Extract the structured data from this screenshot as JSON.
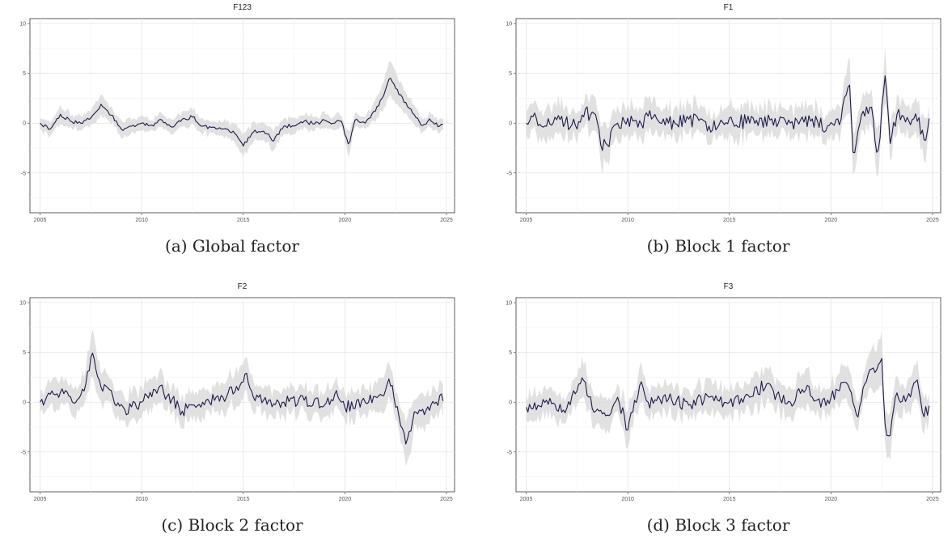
{
  "chart_data": [
    {
      "type": "line",
      "title": "F123",
      "caption": "(a) Global factor",
      "xlabel": "",
      "ylabel": "",
      "xlim": [
        2004.5,
        2025.4
      ],
      "ylim": [
        -9,
        10.5
      ],
      "xticks": [
        2005,
        2010,
        2015,
        2020,
        2025
      ],
      "yticks": [
        -5,
        0,
        5,
        10
      ],
      "grid": true,
      "band": "confidence band (grey)",
      "keypoints": [
        [
          2005.0,
          0.0
        ],
        [
          2005.5,
          -0.6
        ],
        [
          2006.0,
          0.9
        ],
        [
          2006.5,
          0.2
        ],
        [
          2007.0,
          0.0
        ],
        [
          2007.6,
          0.8
        ],
        [
          2008.0,
          1.9
        ],
        [
          2008.5,
          0.8
        ],
        [
          2009.0,
          -0.6
        ],
        [
          2009.5,
          -0.3
        ],
        [
          2010.0,
          0.0
        ],
        [
          2010.5,
          -0.2
        ],
        [
          2011.0,
          0.3
        ],
        [
          2011.5,
          -0.4
        ],
        [
          2012.0,
          0.4
        ],
        [
          2012.5,
          0.6
        ],
        [
          2013.0,
          -0.3
        ],
        [
          2013.5,
          -0.4
        ],
        [
          2014.0,
          -0.6
        ],
        [
          2014.5,
          -0.8
        ],
        [
          2015.0,
          -2.3
        ],
        [
          2015.5,
          -0.9
        ],
        [
          2016.0,
          -0.8
        ],
        [
          2016.5,
          -1.8
        ],
        [
          2017.0,
          -0.3
        ],
        [
          2017.5,
          -0.3
        ],
        [
          2018.0,
          0.2
        ],
        [
          2018.5,
          -0.1
        ],
        [
          2019.0,
          0.3
        ],
        [
          2019.5,
          0.0
        ],
        [
          2019.8,
          0.4
        ],
        [
          2020.2,
          -2.3
        ],
        [
          2020.5,
          0.3
        ],
        [
          2021.0,
          0.0
        ],
        [
          2021.5,
          1.2
        ],
        [
          2021.9,
          2.7
        ],
        [
          2022.2,
          4.6
        ],
        [
          2022.5,
          3.5
        ],
        [
          2022.8,
          2.7
        ],
        [
          2023.1,
          1.6
        ],
        [
          2023.4,
          0.9
        ],
        [
          2023.8,
          -0.3
        ],
        [
          2024.2,
          0.5
        ],
        [
          2024.6,
          -0.4
        ],
        [
          2024.9,
          0.2
        ]
      ],
      "band_width": 0.7,
      "noise": 0.2,
      "seed": 11
    },
    {
      "type": "line",
      "title": "F1",
      "caption": "(b) Block 1 factor",
      "xlabel": "",
      "ylabel": "",
      "xlim": [
        2004.5,
        2025.4
      ],
      "ylim": [
        -9,
        10.5
      ],
      "xticks": [
        2005,
        2010,
        2015,
        2020,
        2025
      ],
      "yticks": [
        -5,
        0,
        5,
        10
      ],
      "grid": true,
      "band": "confidence band (grey)",
      "keypoints": [
        [
          2005.0,
          0.0
        ],
        [
          2005.5,
          0.5
        ],
        [
          2006.0,
          -0.3
        ],
        [
          2006.6,
          0.8
        ],
        [
          2007.2,
          -0.5
        ],
        [
          2007.8,
          0.6
        ],
        [
          2008.3,
          1.3
        ],
        [
          2008.7,
          -2.5
        ],
        [
          2009.0,
          -2.2
        ],
        [
          2009.5,
          0.0
        ],
        [
          2010.0,
          0.5
        ],
        [
          2010.5,
          -0.4
        ],
        [
          2011.0,
          0.7
        ],
        [
          2012.0,
          0.0
        ],
        [
          2013.0,
          0.4
        ],
        [
          2014.0,
          -0.3
        ],
        [
          2015.0,
          0.5
        ],
        [
          2016.0,
          0.0
        ],
        [
          2017.0,
          0.3
        ],
        [
          2018.0,
          0.0
        ],
        [
          2019.0,
          0.2
        ],
        [
          2019.8,
          -0.3
        ],
        [
          2020.5,
          0.4
        ],
        [
          2020.9,
          4.5
        ],
        [
          2021.1,
          -3.6
        ],
        [
          2021.5,
          0.8
        ],
        [
          2022.0,
          1.6
        ],
        [
          2022.3,
          -3.4
        ],
        [
          2022.7,
          5.5
        ],
        [
          2022.9,
          -2.2
        ],
        [
          2023.3,
          1.5
        ],
        [
          2023.7,
          0.0
        ],
        [
          2024.2,
          1.0
        ],
        [
          2024.6,
          -1.8
        ],
        [
          2024.9,
          1.2
        ]
      ],
      "band_width": 1.6,
      "noise": 0.75,
      "seed": 23
    },
    {
      "type": "line",
      "title": "F2",
      "caption": "(c) Block 2 factor",
      "xlabel": "",
      "ylabel": "",
      "xlim": [
        2004.5,
        2025.4
      ],
      "ylim": [
        -9,
        10.5
      ],
      "xticks": [
        2005,
        2010,
        2015,
        2020,
        2025
      ],
      "yticks": [
        -5,
        0,
        5,
        10
      ],
      "grid": true,
      "band": "confidence band (grey)",
      "keypoints": [
        [
          2005.0,
          0.0
        ],
        [
          2005.5,
          0.8
        ],
        [
          2006.0,
          1.0
        ],
        [
          2006.6,
          0.0
        ],
        [
          2007.2,
          1.2
        ],
        [
          2007.6,
          5.1
        ],
        [
          2008.0,
          1.5
        ],
        [
          2008.6,
          0.5
        ],
        [
          2009.2,
          -0.8
        ],
        [
          2010.0,
          0.0
        ],
        [
          2010.8,
          1.5
        ],
        [
          2011.5,
          0.3
        ],
        [
          2012.0,
          -0.9
        ],
        [
          2013.0,
          0.0
        ],
        [
          2014.0,
          0.5
        ],
        [
          2014.8,
          1.5
        ],
        [
          2015.1,
          2.9
        ],
        [
          2015.5,
          0.5
        ],
        [
          2016.0,
          0.2
        ],
        [
          2017.0,
          0.0
        ],
        [
          2018.0,
          0.2
        ],
        [
          2019.0,
          -0.3
        ],
        [
          2019.5,
          0.8
        ],
        [
          2020.0,
          -0.5
        ],
        [
          2021.0,
          0.0
        ],
        [
          2021.8,
          0.5
        ],
        [
          2022.2,
          2.5
        ],
        [
          2022.5,
          -0.5
        ],
        [
          2022.8,
          -2.3
        ],
        [
          2023.0,
          -4.2
        ],
        [
          2023.5,
          -1.0
        ],
        [
          2024.0,
          -0.8
        ],
        [
          2024.5,
          0.0
        ],
        [
          2024.9,
          0.5
        ]
      ],
      "band_width": 1.4,
      "noise": 0.6,
      "seed": 37
    },
    {
      "type": "line",
      "title": "F3",
      "caption": "(d) Block 3 factor",
      "xlabel": "",
      "ylabel": "",
      "xlim": [
        2004.5,
        2025.4
      ],
      "ylim": [
        -9,
        10.5
      ],
      "xticks": [
        2005,
        2010,
        2015,
        2020,
        2025
      ],
      "yticks": [
        -5,
        0,
        5,
        10
      ],
      "grid": true,
      "band": "confidence band (grey)",
      "keypoints": [
        [
          2005.0,
          -0.5
        ],
        [
          2006.0,
          0.2
        ],
        [
          2007.0,
          -0.6
        ],
        [
          2007.8,
          2.4
        ],
        [
          2008.3,
          -1.0
        ],
        [
          2009.0,
          -1.3
        ],
        [
          2009.5,
          0.5
        ],
        [
          2010.0,
          -2.8
        ],
        [
          2010.6,
          1.8
        ],
        [
          2011.0,
          0.0
        ],
        [
          2012.0,
          0.3
        ],
        [
          2013.0,
          -0.3
        ],
        [
          2014.0,
          0.5
        ],
        [
          2015.0,
          0.0
        ],
        [
          2016.0,
          0.5
        ],
        [
          2016.8,
          1.9
        ],
        [
          2017.5,
          0.3
        ],
        [
          2018.0,
          0.0
        ],
        [
          2018.8,
          1.8
        ],
        [
          2019.5,
          -0.5
        ],
        [
          2020.0,
          0.5
        ],
        [
          2020.8,
          2.0
        ],
        [
          2021.3,
          -1.8
        ],
        [
          2021.8,
          2.8
        ],
        [
          2022.2,
          3.0
        ],
        [
          2022.5,
          4.4
        ],
        [
          2022.7,
          -3.6
        ],
        [
          2022.9,
          -3.6
        ],
        [
          2023.2,
          1.0
        ],
        [
          2023.7,
          0.0
        ],
        [
          2024.2,
          2.2
        ],
        [
          2024.5,
          -1.0
        ],
        [
          2024.9,
          -1.0
        ]
      ],
      "band_width": 1.5,
      "noise": 0.65,
      "seed": 53
    }
  ]
}
